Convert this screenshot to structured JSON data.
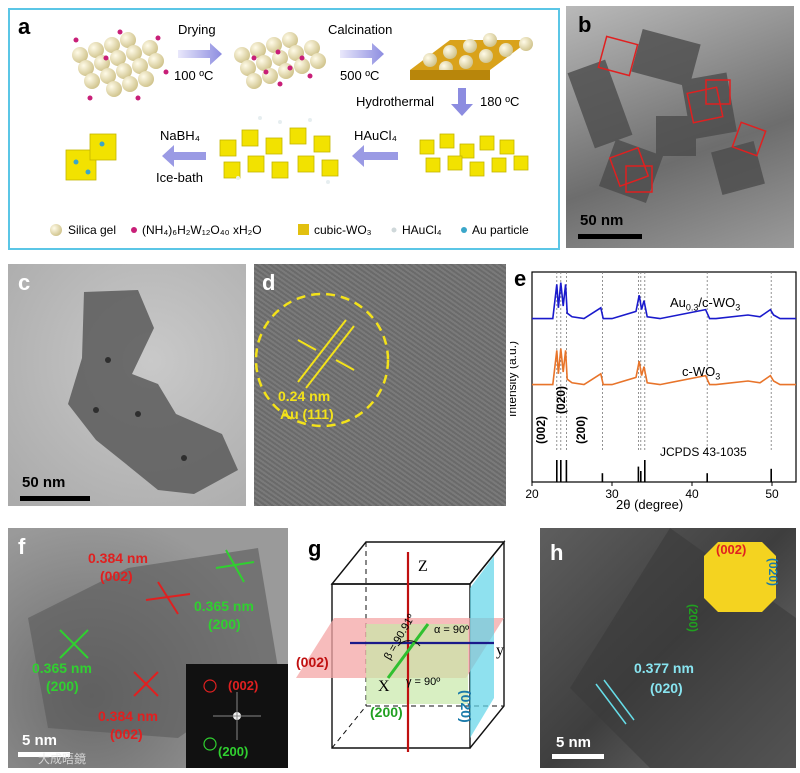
{
  "panels": {
    "a": {
      "label": "a",
      "steps": {
        "drying": "Drying",
        "drying_temp": "100 ºC",
        "calcination": "Calcination",
        "calcination_temp": "500 ºC",
        "hydrothermal": "Hydrothermal",
        "hydrothermal_temp": "180 ºC",
        "haucl4": "HAuCl₄",
        "nabh4": "NaBH₄",
        "icebath": "Ice-bath"
      },
      "legend": {
        "silica": "Silica gel",
        "precursor": "(NH₄)₆H₂W₁₂O₄₀ xH₂O",
        "cubic": "cubic-WO₃",
        "haucl4": "HAuCl₄",
        "au": "Au particle"
      }
    },
    "b": {
      "label": "b",
      "scale": "50 nm"
    },
    "c": {
      "label": "c",
      "scale": "50 nm"
    },
    "d": {
      "label": "d",
      "spacing": "0.24 nm",
      "plane": "Au (111)"
    },
    "e": {
      "label": "e"
    },
    "f": {
      "label": "f",
      "scale": "5 nm",
      "d1": "0.384 nm",
      "p1": "(002)",
      "d2": "0.365 nm",
      "p2": "(200)",
      "d3": "0.365 nm",
      "p3": "(200)",
      "d4": "0.384 nm",
      "p4": "(002)",
      "fft1": "(002)",
      "fft2": "(200)",
      "watermark": "大成晤鏡"
    },
    "g": {
      "label": "g",
      "z": "Z",
      "y": "y",
      "x": "X",
      "beta": "β = 90.91º",
      "alpha": "α = 90º",
      "gamma": "γ = 90º",
      "p002": "(002)",
      "p200": "(200)",
      "p020": "(020)"
    },
    "h": {
      "label": "h",
      "scale": "5 nm",
      "spacing": "0.377 nm",
      "plane": "(020)",
      "c002": "(002)",
      "c200": "(200)",
      "c020": "(020)"
    }
  },
  "chart_data": {
    "type": "line",
    "ylabel": "Intensity (a.u.)",
    "xlabel": "2θ (degree)",
    "xlim": [
      20,
      53
    ],
    "xticks": [
      "20",
      "30",
      "40",
      "50"
    ],
    "series": [
      {
        "name": "Au0.3/c-WO3",
        "color": "#1a1acc",
        "x": [
          20,
          22.6,
          23.1,
          23.3,
          23.6,
          23.9,
          24.2,
          24.4,
          25,
          26.5,
          28.6,
          28.9,
          29.2,
          30,
          33,
          33.4,
          33.7,
          34,
          34.4,
          36,
          41.7,
          42.2,
          43,
          47,
          48.5,
          49.8,
          50.2,
          51,
          53
        ],
        "y": [
          0.3,
          0.3,
          2.2,
          0.9,
          2.3,
          1.0,
          2.2,
          0.6,
          0.4,
          0.3,
          0.9,
          0.3,
          0.3,
          0.3,
          0.7,
          1.6,
          0.8,
          1.3,
          0.4,
          0.3,
          0.8,
          0.3,
          0.3,
          0.5,
          0.4,
          0.8,
          0.5,
          0.3,
          0.3
        ]
      },
      {
        "name": "c-WO3",
        "color": "#e8742a",
        "x": [
          20,
          22.6,
          23.1,
          23.3,
          23.6,
          23.9,
          24.2,
          24.4,
          25,
          26.5,
          28.6,
          28.9,
          29.2,
          30,
          33,
          33.4,
          33.7,
          34,
          34.4,
          36,
          41.7,
          42.2,
          43,
          47,
          48.5,
          49.8,
          50.2,
          51,
          53
        ],
        "y": [
          0.3,
          0.3,
          2.2,
          0.9,
          2.3,
          1.0,
          2.2,
          0.6,
          0.4,
          0.3,
          0.9,
          0.3,
          0.3,
          0.3,
          0.7,
          1.6,
          0.8,
          1.3,
          0.4,
          0.3,
          0.8,
          0.3,
          0.3,
          0.5,
          0.4,
          0.8,
          0.5,
          0.3,
          0.3
        ]
      }
    ],
    "reference": {
      "name": "JCPDS 43-1035",
      "x": [
        23.1,
        23.6,
        24.3,
        28.8,
        33.3,
        33.6,
        34.1,
        41.9,
        49.9
      ],
      "y": [
        1.0,
        1.0,
        1.0,
        0.4,
        0.7,
        0.5,
        1.0,
        0.4,
        0.6
      ]
    },
    "peak_labels": [
      "(002)",
      "(020)",
      "(200)"
    ],
    "series_labels": [
      "Au0.3/c-WO3",
      "c-WO3"
    ]
  }
}
